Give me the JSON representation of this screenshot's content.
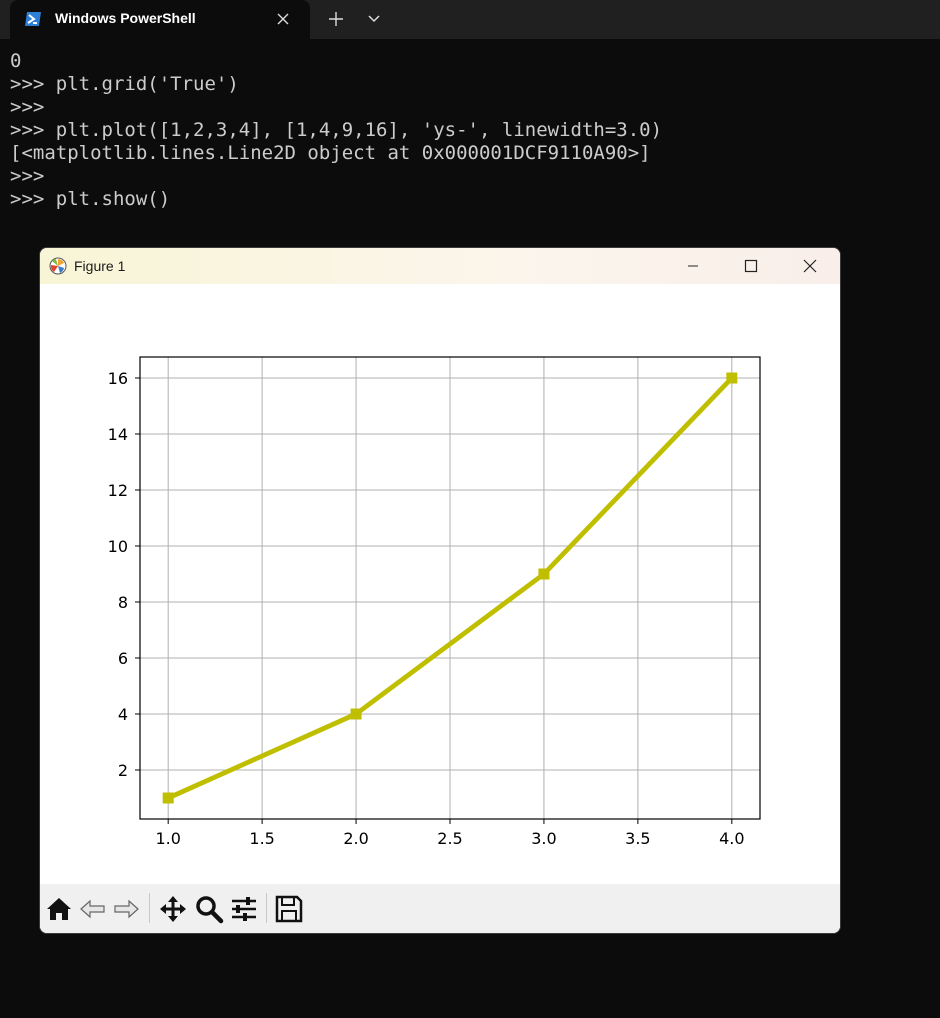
{
  "terminal": {
    "tab_title": "Windows PowerShell",
    "lines": [
      "0",
      ">>> plt.grid('True')",
      ">>>",
      ">>> plt.plot([1,2,3,4], [1,4,9,16], 'ys-', linewidth=3.0)",
      "[<matplotlib.lines.Line2D object at 0x000001DCF9110A90>]",
      ">>>",
      ">>> plt.show()"
    ]
  },
  "figure_window": {
    "title": "Figure 1",
    "controls": [
      "minimize-icon",
      "maximize-icon",
      "close-icon"
    ],
    "toolbar": [
      "home-icon",
      "back-icon",
      "forward-icon",
      "pan-icon",
      "zoom-icon",
      "configure-subplots-icon",
      "save-icon"
    ]
  },
  "chart_data": {
    "type": "line",
    "x": [
      1,
      2,
      3,
      4
    ],
    "series": [
      {
        "values": [
          1,
          4,
          9,
          16
        ],
        "color": "#bfbf00",
        "marker": "square",
        "linewidth": 3.0
      }
    ],
    "xlim": [
      0.85,
      4.15
    ],
    "ylim": [
      0.25,
      16.75
    ],
    "xticks": [
      "1.0",
      "1.5",
      "2.0",
      "2.5",
      "3.0",
      "3.5",
      "4.0"
    ],
    "yticks": [
      "2",
      "4",
      "6",
      "8",
      "10",
      "12",
      "14",
      "16"
    ],
    "grid": true,
    "title": "",
    "xlabel": "",
    "ylabel": ""
  },
  "colors": {
    "terminal_bg": "#0c0c0c",
    "terminal_text": "#cccccc",
    "line": "#bfbf00",
    "grid": "#b0b0b0"
  }
}
